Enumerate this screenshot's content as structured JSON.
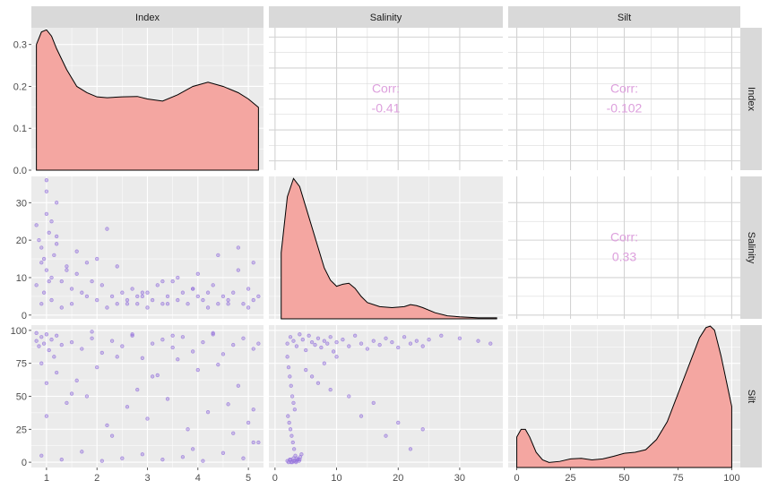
{
  "variables": [
    "Index",
    "Salinity",
    "Silt"
  ],
  "colors": {
    "panel_bg": "#EBEBEB",
    "grid": "#FFFFFF",
    "strip_bg": "#D9D9D9",
    "density_fill": "#F4A6A1",
    "density_line": "#000000",
    "point": "#9370DB",
    "corr_text": "#DDA0DD"
  },
  "chart_data": {
    "type": "scatter",
    "layout": "pairs-matrix",
    "grid": true,
    "axes": {
      "Index": {
        "ylim": [
          0,
          0.34
        ],
        "yticks": [
          0.0,
          0.1,
          0.2,
          0.3
        ],
        "yticklabels": [
          "0.0",
          "0.1",
          "0.2",
          "0.3"
        ],
        "xlim": [
          0.7,
          5.3
        ],
        "xticks": [
          1,
          2,
          3,
          4,
          5
        ],
        "xticklabels": [
          "1",
          "2",
          "3",
          "4",
          "5"
        ],
        "range": [
          0.7,
          5.3
        ]
      },
      "Salinity": {
        "range": [
          -1,
          37
        ],
        "ticks": [
          0,
          10,
          20,
          30
        ],
        "ticklabels": [
          "0",
          "10",
          "20",
          "30"
        ]
      },
      "Silt": {
        "range": [
          -4,
          104
        ],
        "ticks": [
          0,
          25,
          50,
          75,
          100
        ],
        "ticklabels": [
          "0",
          "25",
          "50",
          "75",
          "100"
        ]
      }
    },
    "correlations": [
      {
        "row": "Index",
        "col": "Salinity",
        "label": "Corr:",
        "value": "-0.41"
      },
      {
        "row": "Index",
        "col": "Silt",
        "label": "Corr:",
        "value": "-0.102"
      },
      {
        "row": "Salinity",
        "col": "Silt",
        "label": "Corr:",
        "value": "0.33"
      }
    ],
    "densities": {
      "Index": {
        "x": [
          0.8,
          0.9,
          1.0,
          1.1,
          1.2,
          1.4,
          1.6,
          1.8,
          2.0,
          2.2,
          2.5,
          2.8,
          3.0,
          3.3,
          3.6,
          3.9,
          4.2,
          4.5,
          4.8,
          5.0,
          5.2
        ],
        "y": [
          0.3,
          0.33,
          0.335,
          0.32,
          0.29,
          0.24,
          0.2,
          0.185,
          0.175,
          0.173,
          0.175,
          0.176,
          0.17,
          0.165,
          0.18,
          0.2,
          0.21,
          0.2,
          0.185,
          0.17,
          0.15
        ]
      },
      "Salinity": {
        "ylim": [
          0,
          0.14
        ],
        "x": [
          1,
          2,
          3,
          4,
          5,
          6,
          7,
          8,
          9,
          10,
          11,
          12,
          13,
          14,
          15,
          17,
          19,
          21,
          22,
          23,
          24,
          26,
          28,
          30,
          33,
          36
        ],
        "y": [
          0.065,
          0.12,
          0.138,
          0.13,
          0.11,
          0.09,
          0.07,
          0.05,
          0.038,
          0.032,
          0.034,
          0.035,
          0.03,
          0.022,
          0.016,
          0.012,
          0.011,
          0.012,
          0.014,
          0.013,
          0.011,
          0.006,
          0.003,
          0.002,
          0.001,
          0.001
        ]
      },
      "Silt": {
        "ylim": [
          0,
          0.028
        ],
        "x": [
          0,
          2,
          4,
          6,
          9,
          12,
          15,
          20,
          25,
          30,
          35,
          40,
          45,
          50,
          55,
          60,
          65,
          70,
          75,
          80,
          85,
          88,
          90,
          92,
          95,
          98,
          100
        ],
        "y": [
          0.006,
          0.0075,
          0.0075,
          0.006,
          0.003,
          0.0015,
          0.001,
          0.0012,
          0.0017,
          0.0018,
          0.0015,
          0.0017,
          0.0022,
          0.0028,
          0.003,
          0.0035,
          0.0055,
          0.009,
          0.0145,
          0.02,
          0.0255,
          0.0275,
          0.0278,
          0.027,
          0.022,
          0.016,
          0.012
        ]
      }
    },
    "scatter": {
      "Salinity_vs_Index": {
        "x": [
          0.8,
          0.85,
          0.9,
          0.95,
          1.0,
          1.0,
          1.05,
          1.1,
          1.15,
          1.2,
          0.8,
          0.9,
          1.0,
          1.1,
          1.2,
          1.3,
          1.4,
          1.5,
          1.6,
          1.7,
          1.8,
          1.9,
          2.0,
          2.1,
          2.2,
          2.3,
          2.4,
          2.5,
          2.6,
          2.7,
          2.8,
          2.9,
          3.0,
          3.1,
          3.2,
          3.3,
          3.4,
          3.5,
          3.6,
          3.7,
          3.8,
          3.9,
          4.0,
          4.1,
          4.2,
          4.3,
          4.4,
          4.5,
          4.6,
          4.7,
          4.8,
          4.9,
          5.0,
          5.1,
          5.2,
          0.9,
          1.1,
          1.3,
          1.5,
          2.2,
          2.6,
          3.0,
          3.4,
          4.2,
          4.6,
          5.0,
          0.95,
          1.05,
          1.2,
          1.4,
          1.8,
          2.4,
          2.8,
          3.6,
          4.0,
          4.8,
          1.0,
          1.6,
          2.0,
          2.9,
          3.3,
          3.9,
          4.4,
          5.1
        ],
        "y": [
          24,
          20,
          18,
          15,
          12,
          27,
          22,
          10,
          16,
          30,
          8,
          14,
          36,
          25,
          19,
          9,
          13,
          7,
          11,
          6,
          5,
          9,
          4,
          8,
          23,
          5,
          3,
          6,
          4,
          7,
          3,
          5,
          6,
          4,
          8,
          3,
          5,
          9,
          4,
          6,
          3,
          7,
          5,
          4,
          6,
          8,
          3,
          5,
          4,
          6,
          18,
          3,
          7,
          4,
          5,
          3,
          4,
          2,
          3,
          2,
          3,
          2,
          3,
          2,
          3,
          2,
          6,
          9,
          21,
          12,
          14,
          13,
          5,
          10,
          11,
          12,
          33,
          17,
          15,
          6,
          9,
          7,
          16,
          14
        ]
      },
      "Silt_vs_Index": {
        "x": [
          0.8,
          0.85,
          0.9,
          0.95,
          1.0,
          1.05,
          1.1,
          1.15,
          1.2,
          1.3,
          1.5,
          1.7,
          1.9,
          2.1,
          2.3,
          2.5,
          2.7,
          2.9,
          3.1,
          3.3,
          3.5,
          3.7,
          3.9,
          4.1,
          4.3,
          4.5,
          4.7,
          4.9,
          5.1,
          5.2,
          0.9,
          1.2,
          1.6,
          2.0,
          2.4,
          2.8,
          3.2,
          3.6,
          4.0,
          4.4,
          4.8,
          5.1,
          1.0,
          1.4,
          1.8,
          2.2,
          2.6,
          3.0,
          3.4,
          3.8,
          4.2,
          4.6,
          5.0,
          0.9,
          1.3,
          1.7,
          2.1,
          2.5,
          2.9,
          3.3,
          3.7,
          4.1,
          4.5,
          4.9,
          5.2,
          1.0,
          1.5,
          2.3,
          3.1,
          3.9,
          4.7,
          0.8,
          1.9,
          2.7,
          3.5,
          4.3,
          5.1
        ],
        "y": [
          92,
          88,
          95,
          90,
          97,
          85,
          93,
          80,
          96,
          89,
          91,
          86,
          94,
          83,
          92,
          88,
          96,
          79,
          90,
          93,
          87,
          95,
          84,
          91,
          97,
          82,
          89,
          94,
          86,
          90,
          75,
          68,
          62,
          72,
          80,
          55,
          66,
          78,
          70,
          74,
          58,
          40,
          35,
          45,
          50,
          28,
          42,
          33,
          48,
          25,
          38,
          44,
          30,
          5,
          2,
          8,
          1,
          3,
          6,
          2,
          4,
          1,
          7,
          3,
          15,
          60,
          52,
          20,
          65,
          10,
          22,
          98,
          99,
          97,
          96,
          98,
          15
        ]
      },
      "Silt_vs_Salinity": {
        "x": [
          2,
          2.5,
          3,
          3.5,
          4,
          4.5,
          5,
          5.5,
          6,
          6.5,
          7,
          7.5,
          8,
          8.5,
          9,
          9.5,
          10,
          11,
          12,
          13,
          14,
          15,
          16,
          17,
          18,
          19,
          20,
          21,
          22,
          23,
          24,
          25,
          27,
          30,
          33,
          35,
          2,
          2.2,
          2.4,
          2.6,
          2.8,
          3.0,
          3.2,
          2.1,
          2.3,
          2.5,
          2.7,
          2.9,
          3.1,
          3.3,
          3.5,
          3.7,
          3.9,
          4.1,
          4.3,
          2.0,
          2.5,
          3.0,
          3.5,
          4.0,
          5.0,
          6.0,
          7.0,
          8.0,
          9.0,
          10.0,
          12.0,
          14.0,
          16.0,
          18.0,
          20.0,
          22.0,
          24.0,
          2.2,
          2.6,
          3.0,
          3.4,
          2.4,
          2.8,
          3.2
        ],
        "y": [
          90,
          95,
          92,
          88,
          97,
          93,
          85,
          96,
          91,
          89,
          94,
          87,
          92,
          90,
          95,
          84,
          91,
          93,
          88,
          96,
          90,
          86,
          92,
          89,
          94,
          91,
          87,
          95,
          90,
          92,
          88,
          93,
          96,
          94,
          92,
          90,
          80,
          72,
          65,
          58,
          50,
          45,
          40,
          35,
          30,
          25,
          20,
          15,
          10,
          5,
          3,
          2,
          1,
          4,
          6,
          1,
          2,
          3,
          1,
          2,
          70,
          65,
          60,
          75,
          55,
          80,
          50,
          35,
          45,
          20,
          30,
          10,
          25,
          0,
          0,
          1,
          0,
          2,
          0,
          1
        ]
      }
    }
  }
}
